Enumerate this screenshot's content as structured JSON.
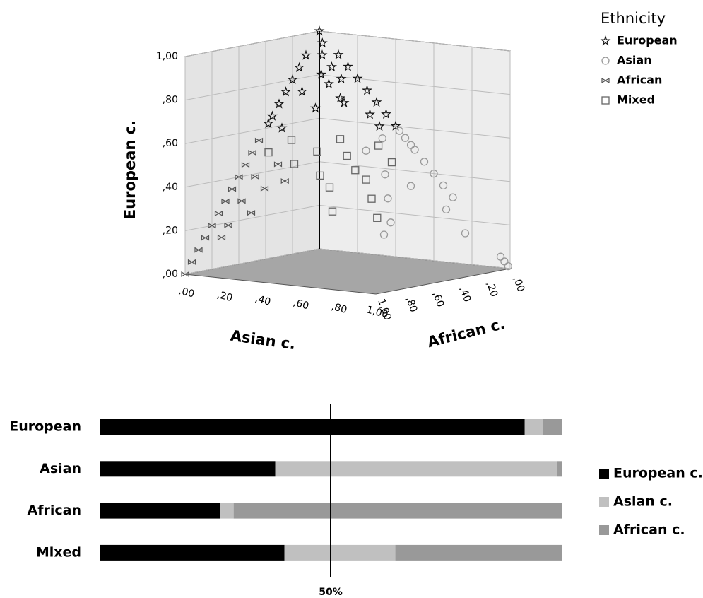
{
  "chart_data": [
    {
      "type": "scatter3d",
      "y_label": "European c.",
      "x_label": "Asian c.",
      "z_label": "African c.",
      "legend_title": "Ethnicity",
      "xlim": [
        0,
        1
      ],
      "ylim": [
        0,
        1
      ],
      "zlim": [
        0,
        1
      ],
      "xticks": [
        {
          "value": 0,
          "label": ",00"
        },
        {
          "value": 0.2,
          "label": ",20"
        },
        {
          "value": 0.4,
          "label": ",40"
        },
        {
          "value": 0.6,
          "label": ",60"
        },
        {
          "value": 0.8,
          "label": ",80"
        },
        {
          "value": 1,
          "label": "1,00"
        }
      ],
      "yticks": [
        {
          "value": 0,
          "label": ",00"
        },
        {
          "value": 0.2,
          "label": ",20"
        },
        {
          "value": 0.4,
          "label": ",40"
        },
        {
          "value": 0.6,
          "label": ",60"
        },
        {
          "value": 0.8,
          "label": ",80"
        },
        {
          "value": 1,
          "label": "1,00"
        }
      ],
      "zticks": [
        {
          "value": 0,
          "label": ",00"
        },
        {
          "value": 0.2,
          "label": ",20"
        },
        {
          "value": 0.4,
          "label": ",40"
        },
        {
          "value": 0.6,
          "label": ",60"
        },
        {
          "value": 0.8,
          "label": ",80"
        },
        {
          "value": 1,
          "label": "1,00"
        }
      ],
      "grid": true,
      "series": [
        {
          "name": "European",
          "marker": "star",
          "color": "#111111",
          "y": [
            1,
            0.95,
            0.9,
            0.85,
            0.8,
            0.75,
            0.7,
            0.65,
            0.6,
            0.6,
            0.9,
            0.85,
            0.8,
            0.75,
            0.7,
            0.65,
            0.62,
            0.9,
            0.85,
            0.8,
            0.75,
            0.7,
            0.65,
            0.6,
            0.78,
            0.72,
            0.68,
            0.82
          ],
          "x": [
            0,
            0.03,
            0.05,
            0.1,
            0.15,
            0.05,
            0.2,
            0.3,
            0.35,
            0.05,
            0,
            0,
            0,
            0,
            0,
            0,
            0,
            0.1,
            0.15,
            0.2,
            0.25,
            0.3,
            0.35,
            0.4,
            0.12,
            0.18,
            0.12,
            0.08
          ],
          "z": [
            0,
            0.02,
            0.05,
            0.05,
            0.05,
            0.2,
            0.1,
            0.05,
            0.05,
            0.35,
            0.1,
            0.15,
            0.2,
            0.25,
            0.3,
            0.35,
            0.38,
            0,
            0,
            0,
            0,
            0,
            0,
            0,
            0.1,
            0.1,
            0.2,
            0.1
          ]
        },
        {
          "name": "Asian",
          "marker": "circle",
          "color": "#999999",
          "y": [
            0.58,
            0.55,
            0.52,
            0.5,
            0.45,
            0.4,
            0.35,
            0.3,
            0.25,
            0.15,
            0.05,
            0.03,
            0.01,
            0.5,
            0.4,
            0.3,
            0.2,
            0.15,
            0.55,
            0.35
          ],
          "x": [
            0.42,
            0.45,
            0.48,
            0.5,
            0.55,
            0.6,
            0.65,
            0.7,
            0.7,
            0.8,
            0.95,
            0.97,
            0.99,
            0.35,
            0.45,
            0.5,
            0.55,
            0.55,
            0.38,
            0.55
          ],
          "z": [
            0,
            0,
            0,
            0,
            0,
            0,
            0,
            0,
            0.05,
            0.05,
            0,
            0,
            0,
            0.15,
            0.15,
            0.2,
            0.25,
            0.3,
            0.07,
            0.1
          ]
        },
        {
          "name": "African",
          "marker": "bowtie",
          "color": "#555555",
          "y": [
            0.55,
            0.5,
            0.45,
            0.4,
            0.35,
            0.3,
            0.25,
            0.2,
            0.15,
            0.1,
            0.05,
            0,
            0.45,
            0.4,
            0.35,
            0.3,
            0.25,
            0.2,
            0.15,
            0.38
          ],
          "x": [
            0,
            0,
            0,
            0,
            0,
            0,
            0,
            0,
            0,
            0,
            0,
            0,
            0.1,
            0.05,
            0.1,
            0.05,
            0.1,
            0.05,
            0.05,
            0.15
          ],
          "z": [
            0.45,
            0.5,
            0.55,
            0.6,
            0.65,
            0.7,
            0.75,
            0.8,
            0.85,
            0.9,
            0.95,
            1,
            0.45,
            0.55,
            0.55,
            0.65,
            0.65,
            0.75,
            0.8,
            0.47
          ]
        },
        {
          "name": "Mixed",
          "marker": "square",
          "color": "#666666",
          "y": [
            0.55,
            0.55,
            0.5,
            0.48,
            0.45,
            0.42,
            0.4,
            0.38,
            0.35,
            0.3,
            0.25,
            0.22,
            0.5,
            0.52,
            0.45
          ],
          "x": [
            0.1,
            0.25,
            0.2,
            0.3,
            0.15,
            0.35,
            0.25,
            0.4,
            0.3,
            0.45,
            0.35,
            0.5,
            0.05,
            0.38,
            0.45
          ],
          "z": [
            0.35,
            0.2,
            0.3,
            0.22,
            0.4,
            0.23,
            0.35,
            0.22,
            0.35,
            0.25,
            0.4,
            0.28,
            0.45,
            0.1,
            0.1
          ]
        }
      ]
    },
    {
      "type": "bar",
      "orientation": "horizontal",
      "stacked": true,
      "categories": [
        "European",
        "Asian",
        "African",
        "Mixed"
      ],
      "xlim": [
        0,
        100
      ],
      "reference_line": {
        "value": 50,
        "label": "50%"
      },
      "series": [
        {
          "name": "European c.",
          "color": "#000000",
          "values": [
            92,
            38,
            26,
            40
          ]
        },
        {
          "name": "Asian c.",
          "color": "#c0c0c0",
          "values": [
            4,
            61,
            3,
            24
          ]
        },
        {
          "name": "African c.",
          "color": "#999999",
          "values": [
            4,
            1,
            71,
            36
          ]
        }
      ]
    }
  ]
}
